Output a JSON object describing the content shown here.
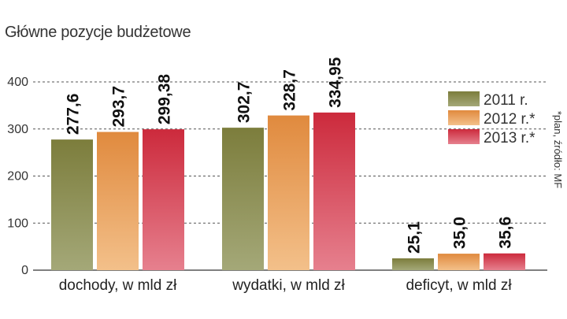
{
  "title": "Główne pozycje budżetowe",
  "source_note": "*plan, źródło: MF",
  "colors": {
    "2011": [
      "#7c7d3c",
      "#a4a878"
    ],
    "2012": [
      "#e08a3e",
      "#f3c08a"
    ],
    "2013": [
      "#cc2a3c",
      "#e6808e"
    ]
  },
  "chart_data": {
    "type": "bar",
    "categories": [
      "dochody, w mld zł",
      "wydatki, w mld zł",
      "deficyt, w mld zł"
    ],
    "series": [
      {
        "name": "2011 r.",
        "key": "2011",
        "values": [
          277.6,
          302.7,
          25.1
        ],
        "labels": [
          "277,6",
          "302,7",
          "25,1"
        ]
      },
      {
        "name": "2012 r.*",
        "key": "2012",
        "values": [
          293.7,
          328.7,
          35.0
        ],
        "labels": [
          "293,7",
          "328,7",
          "35,0"
        ]
      },
      {
        "name": "2013 r.*",
        "key": "2013",
        "values": [
          299.38,
          334.95,
          35.6
        ],
        "labels": [
          "299,38",
          "334,95",
          "35,6"
        ]
      }
    ],
    "yticks": [
      0,
      100,
      200,
      300,
      400
    ],
    "ylim": [
      0,
      400
    ],
    "grid": true,
    "legend": "right"
  }
}
